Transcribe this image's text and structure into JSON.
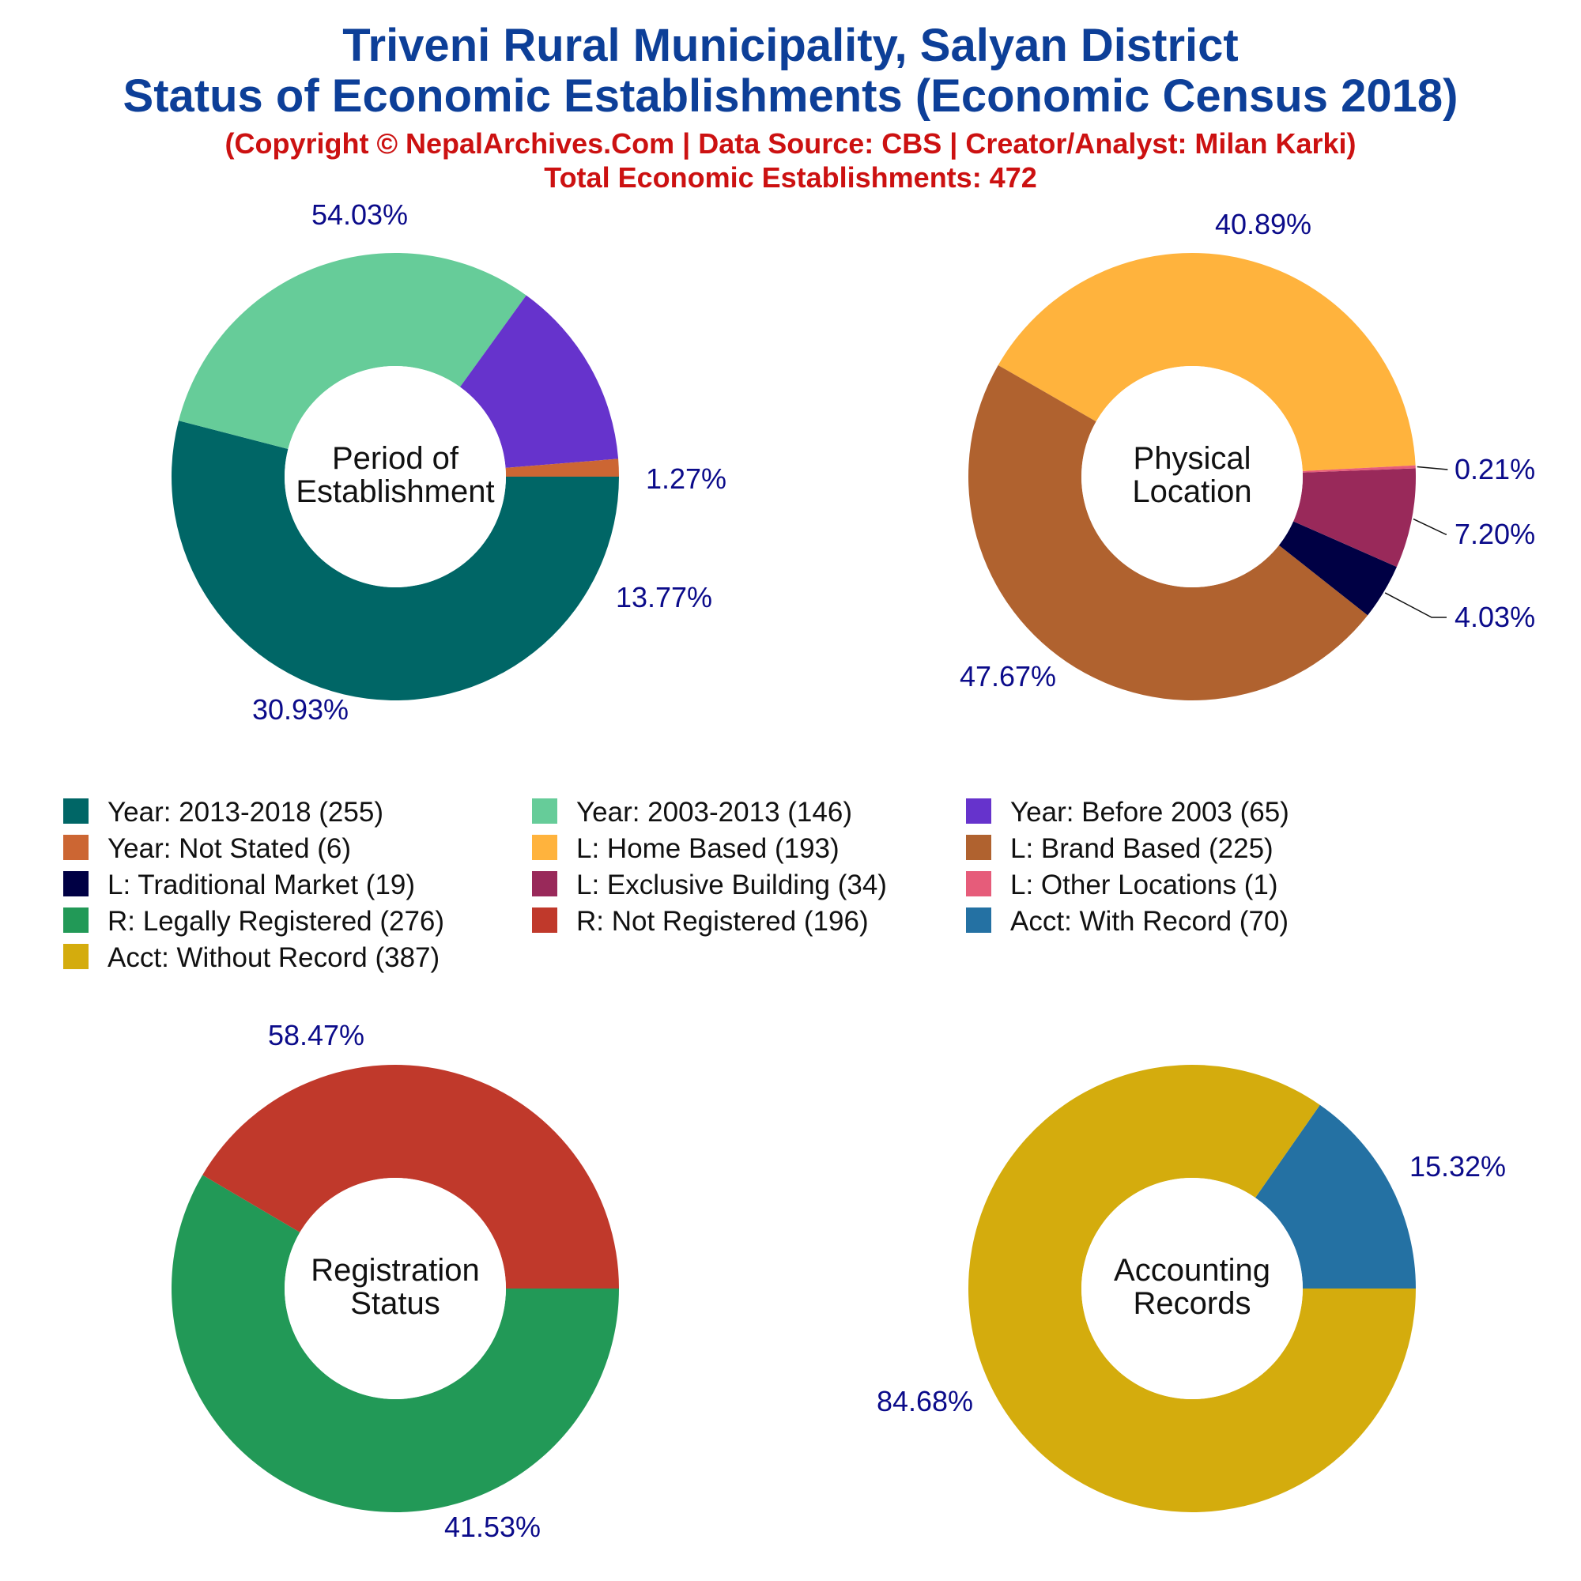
{
  "title": "Triveni Rural Municipality, Salyan District",
  "subtitle": "Status of Economic Establishments (Economic Census 2018)",
  "copyright": "(Copyright © NepalArchives.Com | Data Source: CBS | Creator/Analyst: Milan Karki)",
  "total": "Total Economic Establishments: 472",
  "legend": [
    {
      "label": "Year: 2013-2018 (255)",
      "color": "#006666"
    },
    {
      "label": "Year: 2003-2013 (146)",
      "color": "#66cc99"
    },
    {
      "label": "Year: Before 2003 (65)",
      "color": "#6633cc"
    },
    {
      "label": "Year: Not Stated (6)",
      "color": "#cc6633"
    },
    {
      "label": "L: Home Based (193)",
      "color": "#ffb33d"
    },
    {
      "label": "L: Brand Based (225)",
      "color": "#b0622f"
    },
    {
      "label": "L: Traditional Market (19)",
      "color": "#000044"
    },
    {
      "label": "L: Exclusive Building (34)",
      "color": "#99295a"
    },
    {
      "label": "L: Other Locations (1)",
      "color": "#e65c7a"
    },
    {
      "label": "R: Legally Registered (276)",
      "color": "#229957"
    },
    {
      "label": "R: Not Registered (196)",
      "color": "#c0392b"
    },
    {
      "label": "Acct: With Record (70)",
      "color": "#2471a3"
    },
    {
      "label": "Acct: Without Record (387)",
      "color": "#d4ac0d"
    }
  ],
  "chart_data": [
    {
      "type": "pie",
      "center_label": [
        "Period of",
        "Establishment"
      ],
      "categories": [
        "Year: 2013-2018",
        "Year: 2003-2013",
        "Year: Before 2003",
        "Year: Not Stated"
      ],
      "values": [
        255,
        146,
        65,
        6
      ],
      "labels": [
        "54.03%",
        "30.93%",
        "13.77%",
        "1.27%"
      ],
      "colors": [
        "#006666",
        "#66cc99",
        "#6633cc",
        "#cc6633"
      ]
    },
    {
      "type": "pie",
      "center_label": [
        "Physical",
        "Location"
      ],
      "categories": [
        "L: Home Based",
        "L: Brand Based",
        "L: Traditional Market",
        "L: Exclusive Building",
        "L: Other Locations"
      ],
      "values": [
        193,
        225,
        19,
        34,
        1
      ],
      "labels": [
        "40.89%",
        "47.67%",
        "4.03%",
        "7.20%",
        "0.21%"
      ],
      "colors": [
        "#ffb33d",
        "#b0622f",
        "#000044",
        "#99295a",
        "#e65c7a"
      ]
    },
    {
      "type": "pie",
      "center_label": [
        "Registration",
        "Status"
      ],
      "categories": [
        "R: Legally Registered",
        "R: Not Registered"
      ],
      "values": [
        276,
        196
      ],
      "labels": [
        "58.47%",
        "41.53%"
      ],
      "colors": [
        "#229957",
        "#c0392b"
      ]
    },
    {
      "type": "pie",
      "center_label": [
        "Accounting",
        "Records"
      ],
      "categories": [
        "Acct: With Record",
        "Acct: Without Record"
      ],
      "values": [
        70,
        387
      ],
      "labels": [
        "15.32%",
        "84.68%"
      ],
      "colors": [
        "#2471a3",
        "#d4ac0d"
      ]
    }
  ]
}
